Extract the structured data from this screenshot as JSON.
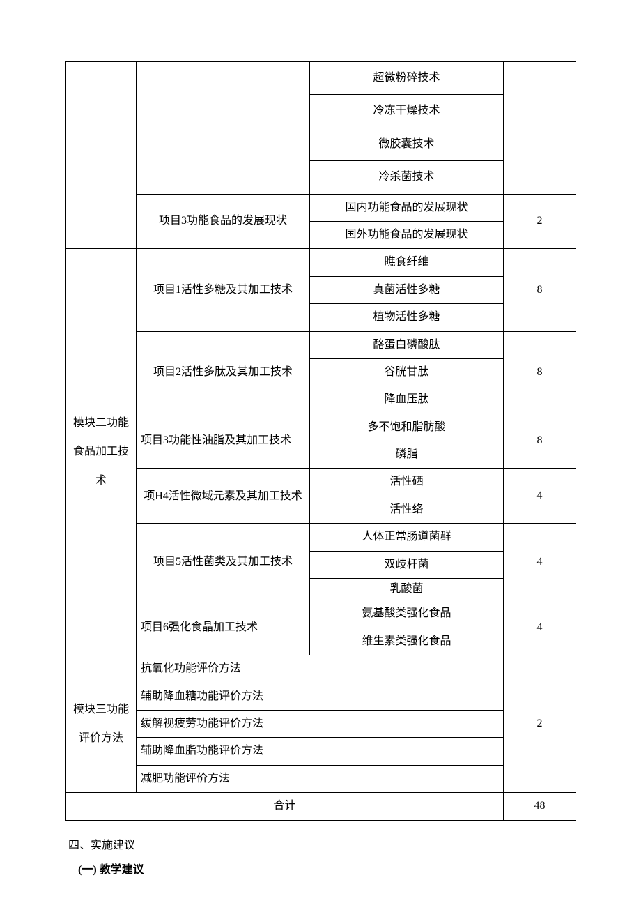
{
  "table": {
    "m1": {
      "t1": "超微粉碎技术",
      "t2": "冷冻干燥技术",
      "t3": "微胶囊技术",
      "t4": "冷杀菌技术",
      "p3_label": "项目3功能食品的发展现状",
      "p3_s1": "国内功能食品的发展现状",
      "p3_s2": "国外功能食品的发展现状",
      "p3_hours": "2"
    },
    "m2": {
      "label": "模块二功能食品加工技术",
      "p1_label": "项目1活性多糖及其加工技术",
      "p1_s1": "瞧食纤维",
      "p1_s2": "真菌活性多糖",
      "p1_s3": "植物活性多糖",
      "p1_hours": "8",
      "p2_label": "项目2活性多肽及其加工技术",
      "p2_s1": "酪蛋白磷酸肽",
      "p2_s2": "谷胱甘肽",
      "p2_s3": "降血压肽",
      "p2_hours": "8",
      "p3_label": "项目3功能性油脂及其加工技术",
      "p3_s1": "多不饱和脂肪酸",
      "p3_s2": "磷脂",
      "p3_hours": "8",
      "p4_label": "项H4活性微域元素及其加工技术",
      "p4_s1": "活性硒",
      "p4_s2": "活性络",
      "p4_hours": "4",
      "p5_label": "项目5活性菌类及其加工技术",
      "p5_s1": "人体正常肠道菌群",
      "p5_s2": "双歧杆菌",
      "p5_s3": "乳酸菌",
      "p5_hours": "4",
      "p6_label": "项目6强化食晶加工技术",
      "p6_s1": "氨基酸类强化食品",
      "p6_s2": "维生素类强化食品",
      "p6_hours": "4"
    },
    "m3": {
      "label": "模块三功能评价方法",
      "r1": "抗氧化功能评价方法",
      "r2": "辅助降血糖功能评价方法",
      "r3": "缓解视疲劳功能评价方法",
      "r4": "辅助降血脂功能评价方法",
      "r5": "减肥功能评价方法",
      "hours": "2"
    },
    "total_label": "合计",
    "total_hours": "48"
  },
  "footer": {
    "line1": "四、实施建议",
    "line2": "(一) 教学建议"
  }
}
